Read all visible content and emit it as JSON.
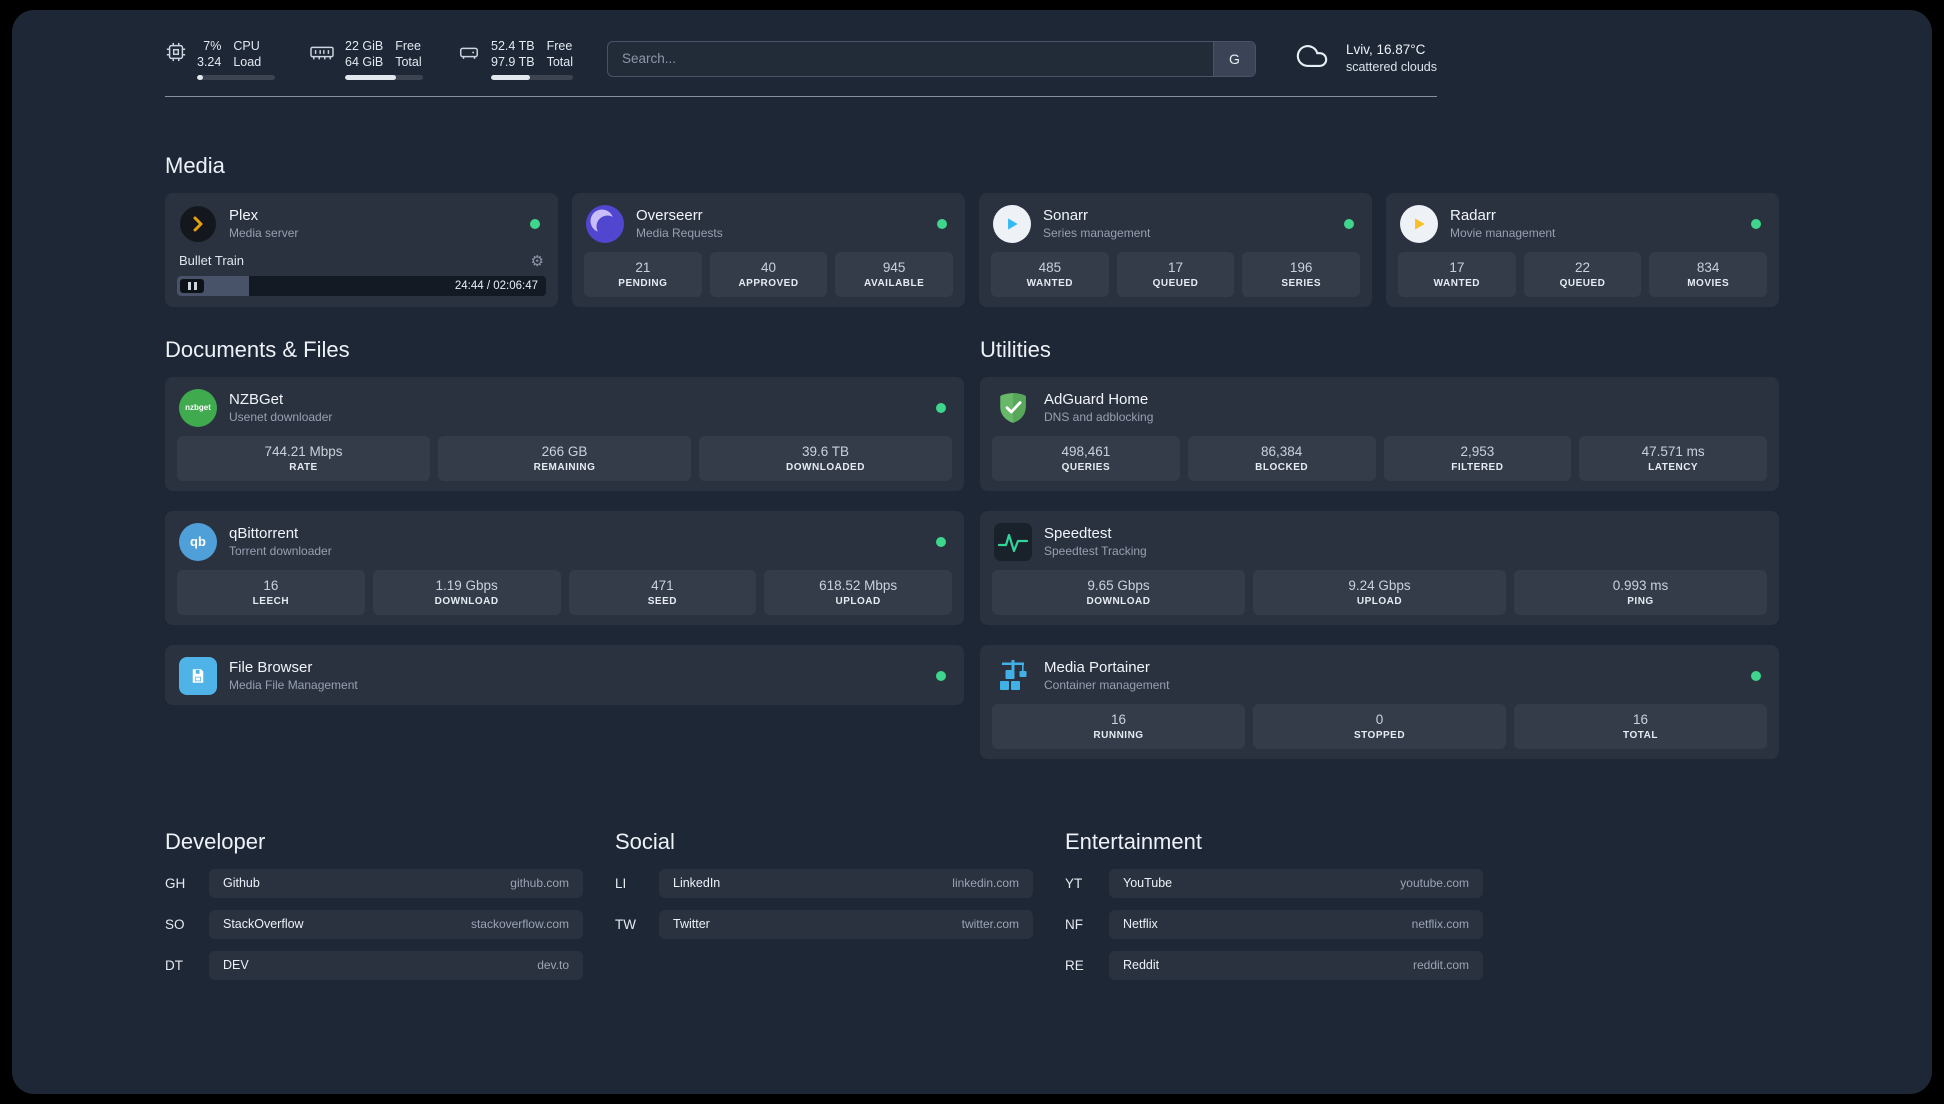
{
  "topbar": {
    "cpu": {
      "value_top": "7%",
      "value_bottom": "3.24",
      "label_top": "CPU",
      "label_bottom": "Load",
      "bar_pct": 8
    },
    "ram": {
      "value_top": "22 GiB",
      "value_bottom": "64 GiB",
      "label_top": "Free",
      "label_bottom": "Total",
      "bar_pct": 66
    },
    "disk": {
      "value_top": "52.4 TB",
      "value_bottom": "97.9 TB",
      "label_top": "Free",
      "label_bottom": "Total",
      "bar_pct": 47
    },
    "search": {
      "placeholder": "Search...",
      "button": "G"
    },
    "weather": {
      "location": "Lviv, 16.87°C",
      "condition": "scattered clouds"
    }
  },
  "media": {
    "heading": "Media",
    "plex": {
      "name": "Plex",
      "desc": "Media server",
      "now_playing": "Bullet Train",
      "time": "24:44 / 02:06:47",
      "progress_pct": 19.5
    },
    "overseerr": {
      "name": "Overseerr",
      "desc": "Media Requests",
      "stats": [
        {
          "value": "21",
          "label": "PENDING"
        },
        {
          "value": "40",
          "label": "APPROVED"
        },
        {
          "value": "945",
          "label": "AVAILABLE"
        }
      ]
    },
    "sonarr": {
      "name": "Sonarr",
      "desc": "Series management",
      "stats": [
        {
          "value": "485",
          "label": "WANTED"
        },
        {
          "value": "17",
          "label": "QUEUED"
        },
        {
          "value": "196",
          "label": "SERIES"
        }
      ]
    },
    "radarr": {
      "name": "Radarr",
      "desc": "Movie management",
      "stats": [
        {
          "value": "17",
          "label": "WANTED"
        },
        {
          "value": "22",
          "label": "QUEUED"
        },
        {
          "value": "834",
          "label": "MOVIES"
        }
      ]
    }
  },
  "documents": {
    "heading": "Documents & Files",
    "nzbget": {
      "name": "NZBGet",
      "desc": "Usenet downloader",
      "icon_text": "nzbget",
      "stats": [
        {
          "value": "744.21 Mbps",
          "label": "RATE"
        },
        {
          "value": "266 GB",
          "label": "REMAINING"
        },
        {
          "value": "39.6 TB",
          "label": "DOWNLOADED"
        }
      ]
    },
    "qbittorrent": {
      "name": "qBittorrent",
      "desc": "Torrent downloader",
      "icon_text": "qb",
      "stats": [
        {
          "value": "16",
          "label": "LEECH"
        },
        {
          "value": "1.19 Gbps",
          "label": "DOWNLOAD"
        },
        {
          "value": "471",
          "label": "SEED"
        },
        {
          "value": "618.52 Mbps",
          "label": "UPLOAD"
        }
      ]
    },
    "filebrowser": {
      "name": "File Browser",
      "desc": "Media File Management"
    }
  },
  "utilities": {
    "heading": "Utilities",
    "adguard": {
      "name": "AdGuard Home",
      "desc": "DNS and adblocking",
      "stats": [
        {
          "value": "498,461",
          "label": "QUERIES"
        },
        {
          "value": "86,384",
          "label": "BLOCKED"
        },
        {
          "value": "2,953",
          "label": "FILTERED"
        },
        {
          "value": "47.571 ms",
          "label": "LATENCY"
        }
      ]
    },
    "speedtest": {
      "name": "Speedtest",
      "desc": "Speedtest Tracking",
      "stats": [
        {
          "value": "9.65 Gbps",
          "label": "DOWNLOAD"
        },
        {
          "value": "9.24 Gbps",
          "label": "UPLOAD"
        },
        {
          "value": "0.993 ms",
          "label": "PING"
        }
      ]
    },
    "portainer": {
      "name": "Media Portainer",
      "desc": "Container management",
      "stats": [
        {
          "value": "16",
          "label": "RUNNING"
        },
        {
          "value": "0",
          "label": "STOPPED"
        },
        {
          "value": "16",
          "label": "TOTAL"
        }
      ]
    }
  },
  "bookmarks": [
    {
      "heading": "Developer",
      "items": [
        {
          "abbr": "GH",
          "name": "Github",
          "url": "github.com"
        },
        {
          "abbr": "SO",
          "name": "StackOverflow",
          "url": "stackoverflow.com"
        },
        {
          "abbr": "DT",
          "name": "DEV",
          "url": "dev.to"
        }
      ]
    },
    {
      "heading": "Social",
      "items": [
        {
          "abbr": "LI",
          "name": "LinkedIn",
          "url": "linkedin.com"
        },
        {
          "abbr": "TW",
          "name": "Twitter",
          "url": "twitter.com"
        }
      ]
    },
    {
      "heading": "Entertainment",
      "items": [
        {
          "abbr": "YT",
          "name": "YouTube",
          "url": "youtube.com"
        },
        {
          "abbr": "NF",
          "name": "Netflix",
          "url": "netflix.com"
        },
        {
          "abbr": "RE",
          "name": "Reddit",
          "url": "reddit.com"
        }
      ]
    }
  ]
}
